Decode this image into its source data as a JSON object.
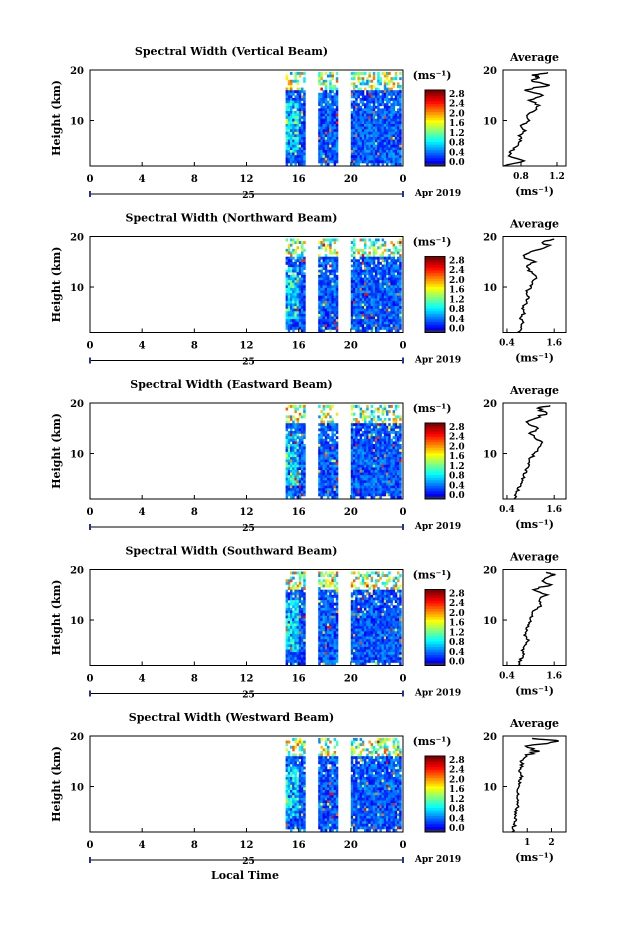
{
  "figure": {
    "date_label": "Apr 2019",
    "day_label": "25",
    "xlabel": "Local Time",
    "avg_title": "Average",
    "unit_label": "(ms⁻¹)"
  },
  "chart_data": [
    {
      "type": "heatmap",
      "title": "Spectral Width (Vertical Beam)",
      "ylabel": "Height (km)",
      "x_ticks": [
        "0",
        "4",
        "8",
        "12",
        "16",
        "20",
        "0"
      ],
      "y_ticks": [
        "20",
        "10"
      ],
      "xlim": [
        0,
        24
      ],
      "ylim": [
        1,
        20
      ],
      "data_segments": [
        [
          15.0,
          16.5
        ],
        [
          17.5,
          19.0
        ],
        [
          20.0,
          23.8
        ]
      ],
      "colorbar": {
        "min": 0.0,
        "max": 2.8,
        "ticks": [
          "2.8",
          "2.4",
          "2.0",
          "1.6",
          "1.2",
          "0.8",
          "0.4",
          "0.0"
        ]
      },
      "average": {
        "xlim": [
          0.6,
          1.3
        ],
        "x_ticks": [
          "0.8",
          "1.2"
        ],
        "x_tick_values": [
          0.8,
          1.2
        ],
        "profile": [
          [
            0.6,
            1
          ],
          [
            0.85,
            2
          ],
          [
            0.65,
            3
          ],
          [
            0.7,
            4
          ],
          [
            0.75,
            5
          ],
          [
            0.8,
            6
          ],
          [
            0.78,
            7
          ],
          [
            0.85,
            8
          ],
          [
            0.8,
            9
          ],
          [
            0.9,
            10
          ],
          [
            0.85,
            11
          ],
          [
            0.95,
            12
          ],
          [
            1.0,
            13
          ],
          [
            0.9,
            14
          ],
          [
            1.05,
            15
          ],
          [
            0.85,
            16
          ],
          [
            1.1,
            17
          ],
          [
            0.9,
            18
          ],
          [
            1.0,
            18.5
          ],
          [
            0.95,
            19
          ],
          [
            1.1,
            19.5
          ]
        ]
      }
    },
    {
      "type": "heatmap",
      "title": "Spectral Width (Northward Beam)",
      "ylabel": "Height (km)",
      "x_ticks": [
        "0",
        "4",
        "8",
        "12",
        "16",
        "20",
        "0"
      ],
      "y_ticks": [
        "20",
        "10"
      ],
      "xlim": [
        0,
        24
      ],
      "ylim": [
        1,
        20
      ],
      "data_segments": [
        [
          15.0,
          16.5
        ],
        [
          17.5,
          19.0
        ],
        [
          20.0,
          23.8
        ]
      ],
      "colorbar": {
        "min": 0.0,
        "max": 2.8,
        "ticks": [
          "2.8",
          "2.4",
          "2.0",
          "1.6",
          "1.2",
          "0.8",
          "0.4",
          "0.0"
        ]
      },
      "average": {
        "xlim": [
          0.3,
          1.9
        ],
        "x_ticks": [
          "0.4",
          "1.6"
        ],
        "x_tick_values": [
          0.4,
          1.6
        ],
        "profile": [
          [
            0.7,
            1
          ],
          [
            0.75,
            2
          ],
          [
            0.8,
            3
          ],
          [
            0.75,
            4
          ],
          [
            0.85,
            5
          ],
          [
            0.8,
            6
          ],
          [
            0.9,
            7
          ],
          [
            0.95,
            8
          ],
          [
            0.9,
            9
          ],
          [
            1.0,
            10
          ],
          [
            1.05,
            11
          ],
          [
            1.15,
            12
          ],
          [
            1.0,
            13
          ],
          [
            0.9,
            14
          ],
          [
            1.1,
            15
          ],
          [
            0.8,
            16
          ],
          [
            0.95,
            17
          ],
          [
            1.5,
            18
          ],
          [
            1.3,
            19
          ],
          [
            1.6,
            19.5
          ]
        ]
      }
    },
    {
      "type": "heatmap",
      "title": "Spectral Width (Eastward Beam)",
      "ylabel": "Height (km)",
      "x_ticks": [
        "0",
        "4",
        "8",
        "12",
        "16",
        "20",
        "0"
      ],
      "y_ticks": [
        "20",
        "10"
      ],
      "xlim": [
        0,
        24
      ],
      "ylim": [
        1,
        20
      ],
      "data_segments": [
        [
          15.0,
          16.5
        ],
        [
          17.5,
          19.0
        ],
        [
          20.0,
          23.8
        ]
      ],
      "colorbar": {
        "min": 0.0,
        "max": 2.8,
        "ticks": [
          "2.8",
          "2.4",
          "2.0",
          "1.6",
          "1.2",
          "0.8",
          "0.4",
          "0.0"
        ]
      },
      "average": {
        "xlim": [
          0.3,
          1.9
        ],
        "x_ticks": [
          "0.4",
          "1.6"
        ],
        "x_tick_values": [
          0.4,
          1.6
        ],
        "profile": [
          [
            0.6,
            1
          ],
          [
            0.65,
            2
          ],
          [
            0.7,
            3
          ],
          [
            0.75,
            4
          ],
          [
            0.8,
            5
          ],
          [
            0.85,
            6
          ],
          [
            0.9,
            7
          ],
          [
            0.95,
            8
          ],
          [
            1.0,
            9
          ],
          [
            1.1,
            10
          ],
          [
            1.2,
            11
          ],
          [
            1.3,
            12
          ],
          [
            1.15,
            13
          ],
          [
            1.0,
            14
          ],
          [
            1.2,
            15
          ],
          [
            0.9,
            16
          ],
          [
            1.1,
            17
          ],
          [
            1.4,
            18
          ],
          [
            1.2,
            19
          ],
          [
            1.5,
            19.5
          ]
        ]
      }
    },
    {
      "type": "heatmap",
      "title": "Spectral Width (Southward Beam)",
      "ylabel": "Height (km)",
      "x_ticks": [
        "0",
        "4",
        "8",
        "12",
        "16",
        "20",
        "0"
      ],
      "y_ticks": [
        "20",
        "10"
      ],
      "xlim": [
        0,
        24
      ],
      "ylim": [
        1,
        20
      ],
      "data_segments": [
        [
          15.0,
          16.5
        ],
        [
          17.5,
          19.0
        ],
        [
          20.0,
          23.8
        ]
      ],
      "colorbar": {
        "min": 0.0,
        "max": 2.8,
        "ticks": [
          "2.8",
          "2.4",
          "2.0",
          "1.6",
          "1.2",
          "0.8",
          "0.4",
          "0.0"
        ]
      },
      "average": {
        "xlim": [
          0.3,
          1.9
        ],
        "x_ticks": [
          "0.4",
          "1.6"
        ],
        "x_tick_values": [
          0.4,
          1.6
        ],
        "profile": [
          [
            0.7,
            1
          ],
          [
            0.75,
            2
          ],
          [
            0.8,
            3
          ],
          [
            0.8,
            4
          ],
          [
            0.85,
            5
          ],
          [
            0.95,
            6
          ],
          [
            0.85,
            7
          ],
          [
            0.9,
            8
          ],
          [
            0.95,
            9
          ],
          [
            1.0,
            10
          ],
          [
            1.05,
            11
          ],
          [
            1.1,
            12
          ],
          [
            1.3,
            13
          ],
          [
            1.2,
            14
          ],
          [
            1.4,
            15
          ],
          [
            1.1,
            16
          ],
          [
            1.5,
            17
          ],
          [
            1.3,
            18
          ],
          [
            1.6,
            19
          ],
          [
            1.4,
            19.5
          ]
        ]
      }
    },
    {
      "type": "heatmap",
      "title": "Spectral Width (Westward Beam)",
      "ylabel": "Height (km)",
      "x_ticks": [
        "0",
        "4",
        "8",
        "12",
        "16",
        "20",
        "0"
      ],
      "y_ticks": [
        "20",
        "10"
      ],
      "xlim": [
        0,
        24
      ],
      "ylim": [
        1,
        20
      ],
      "data_segments": [
        [
          15.0,
          16.5
        ],
        [
          17.5,
          19.0
        ],
        [
          20.0,
          23.8
        ]
      ],
      "colorbar": {
        "min": 0.0,
        "max": 2.8,
        "ticks": [
          "2.8",
          "2.4",
          "2.0",
          "1.6",
          "1.2",
          "0.8",
          "0.4",
          "0.0"
        ]
      },
      "average": {
        "xlim": [
          0,
          2.6
        ],
        "x_ticks": [
          "1",
          "2"
        ],
        "x_tick_values": [
          1,
          2
        ],
        "profile": [
          [
            0.4,
            1
          ],
          [
            0.45,
            2
          ],
          [
            0.5,
            3
          ],
          [
            0.5,
            4
          ],
          [
            0.55,
            5
          ],
          [
            0.6,
            6
          ],
          [
            0.55,
            7
          ],
          [
            0.65,
            8
          ],
          [
            0.6,
            9
          ],
          [
            0.7,
            10
          ],
          [
            0.65,
            11
          ],
          [
            0.75,
            12
          ],
          [
            0.7,
            13
          ],
          [
            0.8,
            14
          ],
          [
            0.75,
            15
          ],
          [
            0.9,
            16
          ],
          [
            1.4,
            17
          ],
          [
            1.0,
            18
          ],
          [
            2.4,
            19
          ],
          [
            1.2,
            19.5
          ]
        ]
      }
    }
  ]
}
